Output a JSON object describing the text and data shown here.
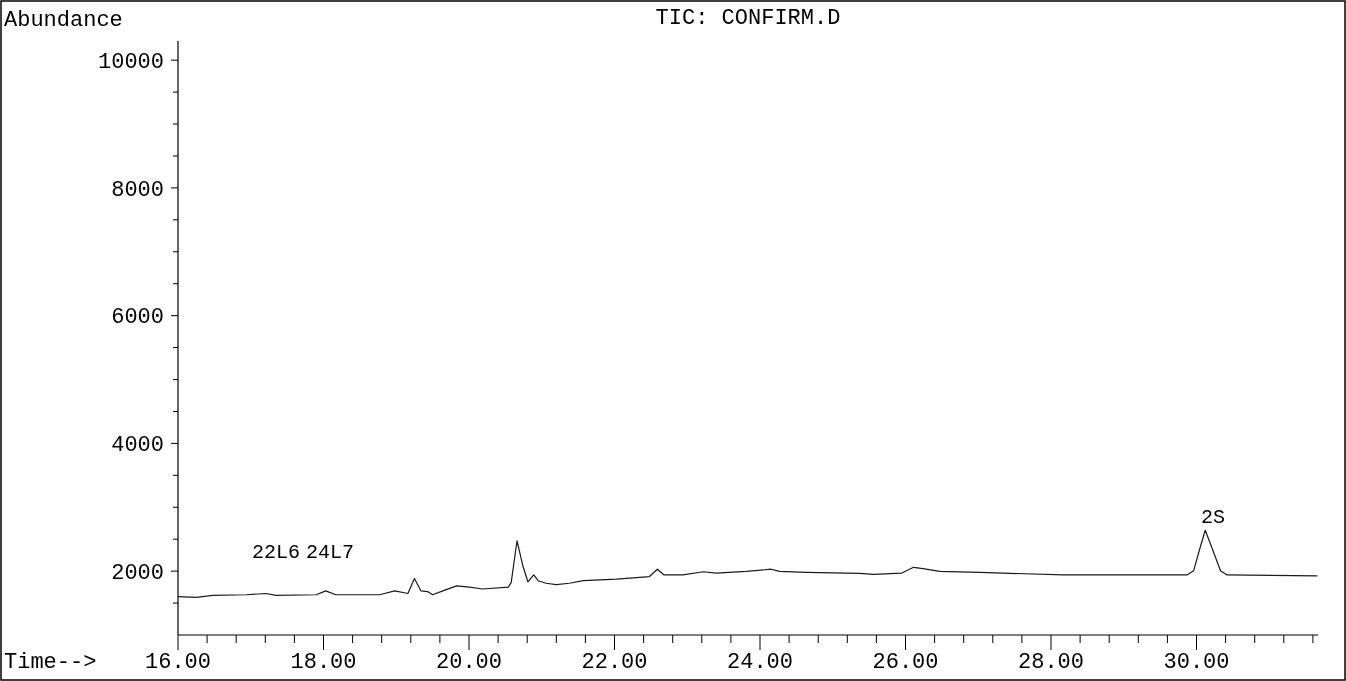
{
  "chart_data": {
    "type": "line",
    "title": "TIC: CONFIRM.D",
    "ylabel": "Abundance",
    "xlabel": "Time-->",
    "xlim": [
      16,
      31.67
    ],
    "ylim": [
      1000,
      10300
    ],
    "xticks": [
      {
        "value": 16,
        "label": "16.00"
      },
      {
        "value": 16.4,
        "label": null
      },
      {
        "value": 16.8,
        "label": null
      },
      {
        "value": 17.2,
        "label": null
      },
      {
        "value": 17.6,
        "label": null
      },
      {
        "value": 18,
        "label": "18.00"
      },
      {
        "value": 18.4,
        "label": null
      },
      {
        "value": 18.8,
        "label": null
      },
      {
        "value": 19.2,
        "label": null
      },
      {
        "value": 19.6,
        "label": null
      },
      {
        "value": 20,
        "label": "20.00"
      },
      {
        "value": 20.4,
        "label": null
      },
      {
        "value": 20.8,
        "label": null
      },
      {
        "value": 21.2,
        "label": null
      },
      {
        "value": 21.6,
        "label": null
      },
      {
        "value": 22,
        "label": "22.00"
      },
      {
        "value": 22.4,
        "label": null
      },
      {
        "value": 22.8,
        "label": null
      },
      {
        "value": 23.2,
        "label": null
      },
      {
        "value": 23.6,
        "label": null
      },
      {
        "value": 24,
        "label": "24.00"
      },
      {
        "value": 24.4,
        "label": null
      },
      {
        "value": 24.8,
        "label": null
      },
      {
        "value": 25.2,
        "label": null
      },
      {
        "value": 25.6,
        "label": null
      },
      {
        "value": 26,
        "label": "26.00"
      },
      {
        "value": 26.4,
        "label": null
      },
      {
        "value": 26.8,
        "label": null
      },
      {
        "value": 27.2,
        "label": null
      },
      {
        "value": 27.6,
        "label": null
      },
      {
        "value": 28,
        "label": "28.00"
      },
      {
        "value": 28.4,
        "label": null
      },
      {
        "value": 28.8,
        "label": null
      },
      {
        "value": 29.2,
        "label": null
      },
      {
        "value": 29.6,
        "label": null
      },
      {
        "value": 30,
        "label": "30.00"
      },
      {
        "value": 30.4,
        "label": null
      },
      {
        "value": 30.8,
        "label": null
      },
      {
        "value": 31.2,
        "label": null
      },
      {
        "value": 31.6,
        "label": null
      }
    ],
    "yticks": [
      {
        "value": 1500,
        "label": null
      },
      2000,
      {
        "value": 2500,
        "label": null
      },
      {
        "value": 3000,
        "label": null
      },
      {
        "value": 3500,
        "label": null
      },
      4000,
      {
        "value": 4500,
        "label": null
      },
      {
        "value": 5000,
        "label": null
      },
      {
        "value": 5500,
        "label": null
      },
      6000,
      {
        "value": 6500,
        "label": null
      },
      {
        "value": 7000,
        "label": null
      },
      {
        "value": 7500,
        "label": null
      },
      8000,
      {
        "value": 8500,
        "label": null
      },
      {
        "value": 9000,
        "label": null
      },
      {
        "value": 9500,
        "label": null
      },
      10000
    ],
    "x": [
      16.0,
      16.25,
      16.48,
      16.94,
      17.21,
      17.35,
      17.9,
      18.03,
      18.17,
      18.77,
      18.98,
      19.16,
      19.25,
      19.34,
      19.43,
      19.5,
      19.64,
      19.83,
      20.01,
      20.19,
      20.54,
      20.58,
      20.66,
      20.74,
      20.81,
      20.89,
      20.95,
      21.06,
      21.2,
      21.38,
      21.57,
      22.03,
      22.48,
      22.59,
      22.68,
      22.94,
      23.22,
      23.4,
      23.81,
      24.15,
      24.27,
      24.64,
      25.37,
      25.56,
      25.95,
      26.11,
      26.24,
      26.47,
      27.02,
      28.17,
      29.87,
      29.96,
      30.05,
      30.12,
      30.21,
      30.33,
      30.42,
      31.66
    ],
    "series": [
      {
        "color": "#1a1a1a",
        "values": [
          1600,
          1590,
          1620,
          1630,
          1650,
          1620,
          1630,
          1690,
          1630,
          1630,
          1690,
          1650,
          1885,
          1690,
          1680,
          1630,
          1690,
          1770,
          1750,
          1720,
          1750,
          1820,
          2475,
          2085,
          1830,
          1940,
          1850,
          1810,
          1790,
          1810,
          1850,
          1875,
          1915,
          2030,
          1940,
          1940,
          1990,
          1970,
          1995,
          2030,
          1995,
          1980,
          1965,
          1950,
          1970,
          2060,
          2040,
          1995,
          1980,
          1940,
          1940,
          2005,
          2370,
          2640,
          2370,
          2005,
          1940,
          1925
        ]
      }
    ],
    "annotations": [
      "22L6",
      "24L7",
      "2S"
    ],
    "grid": false,
    "marker": "none",
    "line_style": "solid"
  }
}
